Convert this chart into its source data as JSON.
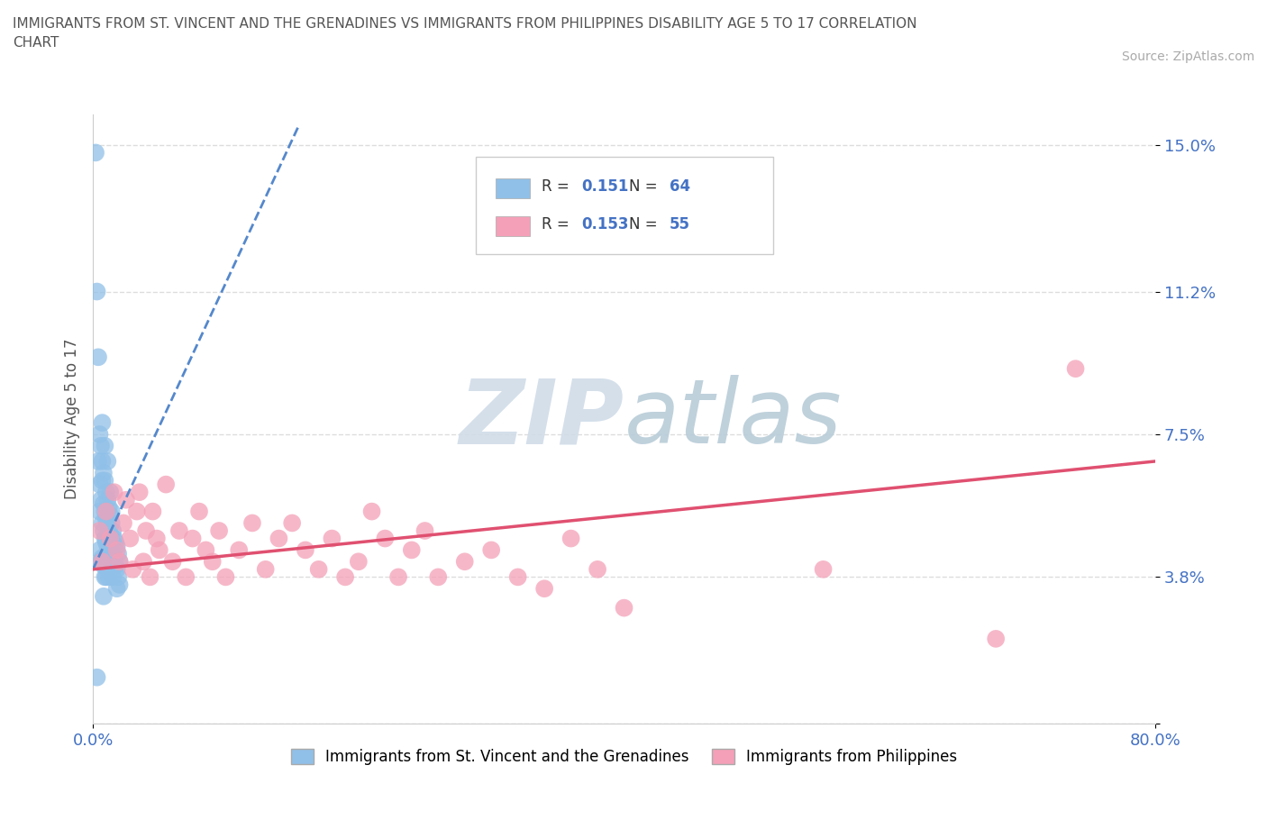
{
  "title": "IMMIGRANTS FROM ST. VINCENT AND THE GRENADINES VS IMMIGRANTS FROM PHILIPPINES DISABILITY AGE 5 TO 17 CORRELATION\nCHART",
  "source": "Source: ZipAtlas.com",
  "ylabel": "Disability Age 5 to 17",
  "xlim": [
    0.0,
    0.8
  ],
  "ylim": [
    0.0,
    0.158
  ],
  "yticks": [
    0.0,
    0.038,
    0.075,
    0.112,
    0.15
  ],
  "ytick_labels": [
    "",
    "3.8%",
    "7.5%",
    "11.2%",
    "15.0%"
  ],
  "xticks": [
    0.0,
    0.8
  ],
  "xtick_labels": [
    "0.0%",
    "80.0%"
  ],
  "blue_color": "#90C0E8",
  "pink_color": "#F4A0B8",
  "blue_trend_color": "#5588CC",
  "pink_trend_color": "#E05070",
  "R_blue": 0.151,
  "N_blue": 64,
  "R_pink": 0.153,
  "N_pink": 55,
  "blue_scatter_x": [
    0.002,
    0.003,
    0.004,
    0.004,
    0.005,
    0.005,
    0.005,
    0.006,
    0.006,
    0.006,
    0.007,
    0.007,
    0.007,
    0.007,
    0.008,
    0.008,
    0.008,
    0.008,
    0.009,
    0.009,
    0.009,
    0.009,
    0.009,
    0.01,
    0.01,
    0.01,
    0.01,
    0.01,
    0.011,
    0.011,
    0.011,
    0.011,
    0.012,
    0.012,
    0.012,
    0.012,
    0.013,
    0.013,
    0.013,
    0.014,
    0.014,
    0.015,
    0.015,
    0.015,
    0.016,
    0.016,
    0.017,
    0.017,
    0.018,
    0.018,
    0.018,
    0.019,
    0.019,
    0.02,
    0.02,
    0.014,
    0.011,
    0.013,
    0.009,
    0.01,
    0.007,
    0.005,
    0.008,
    0.003
  ],
  "blue_scatter_y": [
    0.148,
    0.112,
    0.095,
    0.068,
    0.075,
    0.055,
    0.045,
    0.072,
    0.058,
    0.042,
    0.068,
    0.063,
    0.052,
    0.043,
    0.065,
    0.057,
    0.05,
    0.041,
    0.063,
    0.055,
    0.048,
    0.043,
    0.038,
    0.06,
    0.053,
    0.047,
    0.042,
    0.038,
    0.058,
    0.052,
    0.046,
    0.04,
    0.056,
    0.05,
    0.044,
    0.038,
    0.054,
    0.049,
    0.042,
    0.052,
    0.045,
    0.05,
    0.044,
    0.038,
    0.048,
    0.042,
    0.047,
    0.041,
    0.046,
    0.04,
    0.035,
    0.044,
    0.038,
    0.042,
    0.036,
    0.055,
    0.068,
    0.06,
    0.072,
    0.048,
    0.078,
    0.062,
    0.033,
    0.012
  ],
  "pink_scatter_x": [
    0.005,
    0.007,
    0.01,
    0.013,
    0.016,
    0.018,
    0.02,
    0.023,
    0.025,
    0.028,
    0.03,
    0.033,
    0.035,
    0.038,
    0.04,
    0.043,
    0.045,
    0.048,
    0.05,
    0.055,
    0.06,
    0.065,
    0.07,
    0.075,
    0.08,
    0.085,
    0.09,
    0.095,
    0.1,
    0.11,
    0.12,
    0.13,
    0.14,
    0.15,
    0.16,
    0.17,
    0.18,
    0.19,
    0.2,
    0.21,
    0.22,
    0.23,
    0.24,
    0.25,
    0.26,
    0.28,
    0.3,
    0.32,
    0.34,
    0.36,
    0.38,
    0.4,
    0.55,
    0.68,
    0.74
  ],
  "pink_scatter_y": [
    0.05,
    0.042,
    0.055,
    0.048,
    0.06,
    0.045,
    0.042,
    0.052,
    0.058,
    0.048,
    0.04,
    0.055,
    0.06,
    0.042,
    0.05,
    0.038,
    0.055,
    0.048,
    0.045,
    0.062,
    0.042,
    0.05,
    0.038,
    0.048,
    0.055,
    0.045,
    0.042,
    0.05,
    0.038,
    0.045,
    0.052,
    0.04,
    0.048,
    0.052,
    0.045,
    0.04,
    0.048,
    0.038,
    0.042,
    0.055,
    0.048,
    0.038,
    0.045,
    0.05,
    0.038,
    0.042,
    0.045,
    0.038,
    0.035,
    0.048,
    0.04,
    0.03,
    0.04,
    0.022,
    0.092
  ],
  "blue_trend_x": [
    0.0,
    0.155
  ],
  "blue_trend_y": [
    0.04,
    0.155
  ],
  "pink_trend_x": [
    0.0,
    0.8
  ],
  "pink_trend_y": [
    0.04,
    0.068
  ],
  "watermark_zip": "ZIP",
  "watermark_atlas": "atlas",
  "background_color": "#ffffff",
  "grid_color": "#dddddd",
  "legend_label_blue": "Immigrants from St. Vincent and the Grenadines",
  "legend_label_pink": "Immigrants from Philippines"
}
